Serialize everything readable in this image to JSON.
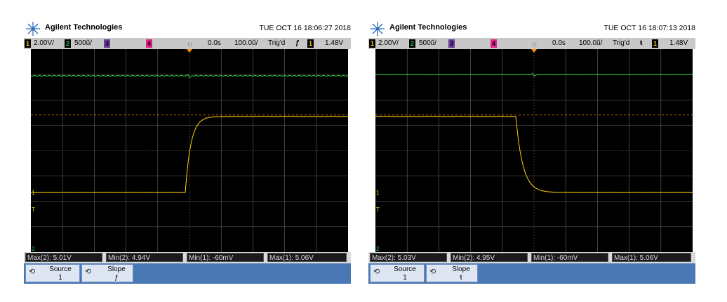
{
  "scopes": [
    {
      "brand": "Agilent Technologies",
      "datetime": "TUE OCT 16 18:06:27 2018",
      "topbar": {
        "ch1_num": "1",
        "ch1_scale": "2.00V/",
        "ch2_num": "2",
        "ch2_scale": "500ũ/",
        "ch3_num": "3",
        "ch4_num": "4",
        "time_delay": "0.0s",
        "time_scale": "100.0ũ/",
        "trig_status": "Trig'd",
        "trig_slope_icon": "ƒ",
        "trig_source": "1",
        "trig_level": "1.48V"
      },
      "measurements": {
        "max2": "Max(2): 5.01V",
        "min2": "Min(2): 4.94V",
        "min1": "Min(1): -60mV",
        "max1": "Max(1): 5.06V"
      },
      "softkeys": {
        "source_label": "Source",
        "source_value": "1",
        "slope_label": "Slope",
        "slope_value": "ƒ"
      },
      "yellow_trace": {
        "edge": "rising",
        "low_div": 2.35,
        "high_div": 5.35
      },
      "green_trace": {
        "level_div": 6.95
      }
    },
    {
      "brand": "Agilent Technologies",
      "datetime": "TUE OCT 16 18:07:13 2018",
      "topbar": {
        "ch1_num": "1",
        "ch1_scale": "2.00V/",
        "ch2_num": "2",
        "ch2_scale": "500ũ/",
        "ch3_num": "3",
        "ch4_num": "4",
        "time_delay": "0.0s",
        "time_scale": "100.0ũ/",
        "trig_status": "Trig'd",
        "trig_slope_icon": "ŧ",
        "trig_source": "1",
        "trig_level": "1.48V"
      },
      "measurements": {
        "max2": "Max(2): 5.03V",
        "min2": "Min(2): 4.95V",
        "min1": "Min(1): -60mV",
        "max1": "Max(1): 5.06V"
      },
      "softkeys": {
        "source_label": "Source",
        "source_value": "1",
        "slope_label": "Slope",
        "slope_value": "ŧ"
      },
      "yellow_trace": {
        "edge": "falling",
        "low_div": 2.35,
        "high_div": 5.35
      },
      "green_trace": {
        "level_div": 7.0
      }
    }
  ],
  "colors": {
    "ch1": "#ffd400",
    "ch2": "#2ecc40",
    "grid": "#6a6a6a",
    "trigger_marker": "#ff8c00"
  },
  "icons": {
    "logo": "agilent-spark-logo",
    "run": "sun-run-icon",
    "softkey": "rotate-knob-icon"
  }
}
